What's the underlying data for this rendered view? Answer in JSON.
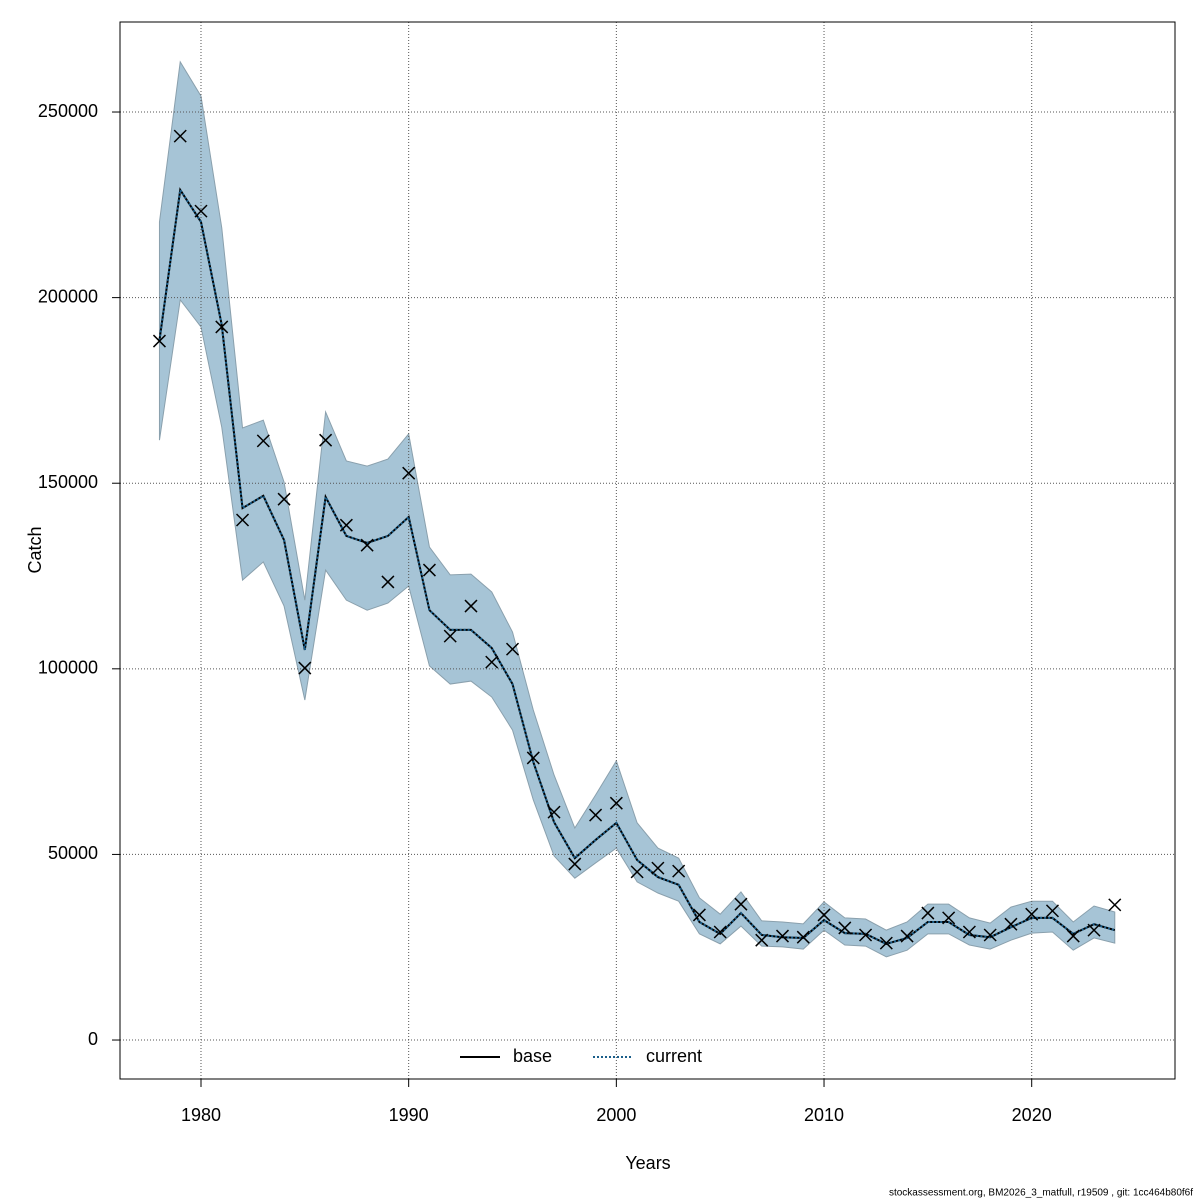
{
  "chart_data": {
    "type": "line",
    "xlabel": "Years",
    "ylabel": "Catch",
    "footnote": "stockassessment.org, BM2026_3_matfull, r19509 , git: 1cc464b80f6f",
    "x": [
      1978,
      1979,
      1980,
      1981,
      1982,
      1983,
      1984,
      1985,
      1986,
      1987,
      1988,
      1989,
      1990,
      1991,
      1992,
      1993,
      1994,
      1995,
      1996,
      1997,
      1998,
      1999,
      2000,
      2001,
      2002,
      2003,
      2004,
      2005,
      2006,
      2007,
      2008,
      2009,
      2010,
      2011,
      2012,
      2013,
      2014,
      2015,
      2016,
      2017,
      2018,
      2019,
      2020,
      2021,
      2022,
      2023,
      2024
    ],
    "observed": {
      "color": "#000000",
      "values": [
        188300,
        243500,
        223300,
        192100,
        140100,
        161400,
        145700,
        100200,
        161600,
        138700,
        133300,
        123400,
        152700,
        126600,
        108800,
        116900,
        101800,
        105300,
        76000,
        61400,
        47400,
        60600,
        63800,
        45300,
        46300,
        45500,
        33700,
        29100,
        36600,
        26900,
        28000,
        27700,
        33700,
        30200,
        28300,
        26100,
        28000,
        34200,
        32900,
        29100,
        28300,
        31200,
        33900,
        34800,
        28000,
        29600,
        36400
      ]
    },
    "band": {
      "color": "#a6c4d6",
      "upper": [
        220400,
        263500,
        254300,
        218800,
        164900,
        167000,
        150300,
        118500,
        169200,
        156000,
        154600,
        156500,
        163300,
        132800,
        125300,
        125500,
        120700,
        109900,
        88900,
        71400,
        57100,
        66000,
        75200,
        58500,
        51700,
        49000,
        38300,
        33900,
        39900,
        32100,
        31800,
        31300,
        37200,
        32900,
        32600,
        29600,
        31800,
        36600,
        36600,
        32900,
        31500,
        35800,
        37400,
        37400,
        31800,
        36100,
        34500
      ],
      "lower": [
        161600,
        199400,
        192100,
        165100,
        123900,
        128800,
        116900,
        91600,
        126600,
        118500,
        115800,
        117700,
        122300,
        100800,
        95900,
        96700,
        92400,
        83500,
        64700,
        49600,
        43600,
        47700,
        51700,
        42600,
        39600,
        37400,
        28600,
        25900,
        30700,
        25300,
        25100,
        24500,
        29600,
        25600,
        25300,
        22400,
        24200,
        28600,
        28600,
        25600,
        24500,
        26900,
        28800,
        29100,
        24200,
        27500,
        26100
      ]
    },
    "series": [
      {
        "name": "base",
        "color": "#000000",
        "style": "solid",
        "values": [
          188500,
          229000,
          220400,
          192600,
          143300,
          146600,
          134700,
          105100,
          146300,
          135800,
          133900,
          135800,
          140900,
          115800,
          110500,
          110500,
          105600,
          95900,
          74900,
          58700,
          49000,
          53900,
          58500,
          48500,
          43900,
          41800,
          31800,
          28600,
          34200,
          28300,
          27700,
          27500,
          32300,
          28800,
          28600,
          25900,
          27500,
          31800,
          31800,
          28300,
          27700,
          30400,
          32900,
          32900,
          28600,
          31200,
          29600
        ]
      },
      {
        "name": "current",
        "color": "#1a5e8a",
        "style": "dotted",
        "values": [
          188500,
          229000,
          220400,
          192600,
          143300,
          146600,
          134700,
          105100,
          146300,
          135800,
          133900,
          135800,
          140900,
          115800,
          110500,
          110500,
          105600,
          95900,
          74900,
          58700,
          49000,
          53900,
          58500,
          48500,
          43900,
          41800,
          31800,
          28600,
          34200,
          28300,
          27700,
          27500,
          32300,
          28800,
          28600,
          25900,
          27500,
          31800,
          31800,
          28300,
          27700,
          30400,
          32900,
          32900,
          28600,
          31200,
          29600
        ]
      }
    ],
    "xlim": [
      1976.1,
      2026.9
    ],
    "ylim": [
      -10500,
      274250
    ],
    "xticks": [
      1980,
      1990,
      2000,
      2010,
      2020
    ],
    "yticks": [
      0,
      50000,
      100000,
      150000,
      200000,
      250000
    ],
    "grid": true,
    "legend": "bottom"
  }
}
